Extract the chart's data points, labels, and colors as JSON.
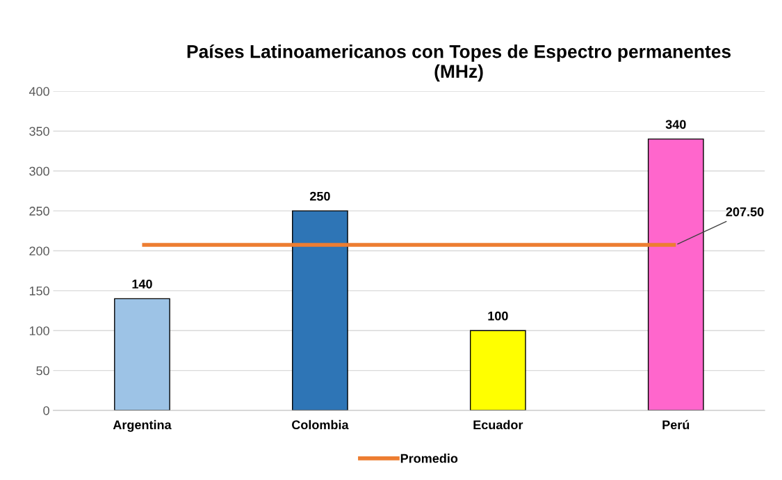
{
  "chart_data": {
    "type": "bar",
    "title": "Países Latinoamericanos con Topes de Espectro permanentes\n(MHz)",
    "categories": [
      "Argentina",
      "Colombia",
      "Ecuador",
      "Perú"
    ],
    "series": [
      {
        "colors": [
          "#9dc3e6",
          "#2e75b6",
          "#ffff00",
          "#ff66cc"
        ],
        "values": [
          140,
          250,
          100,
          340
        ],
        "data_labels": true
      },
      {
        "type": "line",
        "name": "Promedio",
        "color": "#ed7d31",
        "values": [
          207.5,
          207.5,
          207.5,
          207.5
        ]
      }
    ],
    "ylim": [
      0,
      400
    ],
    "yticks": [
      0,
      50,
      100,
      150,
      200,
      250,
      300,
      350,
      400
    ],
    "grid": "y",
    "legend": "bottom",
    "annotations": [
      {
        "text": "207.50",
        "x": "Perú",
        "y": 207.5
      }
    ]
  }
}
